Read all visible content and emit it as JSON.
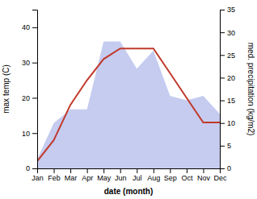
{
  "chart_data": {
    "type": "line",
    "categories": [
      "Jan",
      "Feb",
      "Mar",
      "Apr",
      "May",
      "Jun",
      "Jul",
      "Aug",
      "Sep",
      "Oct",
      "Nov",
      "Dec"
    ],
    "series": [
      {
        "type": "area",
        "axis": "y2",
        "color": "#c5ccf0",
        "values": [
          2,
          10,
          13,
          13,
          28,
          28,
          22,
          26,
          16,
          15,
          16,
          12
        ]
      },
      {
        "type": "line",
        "color": "#c0392b",
        "values": [
          2,
          8,
          18,
          25,
          31,
          34,
          34,
          34,
          27,
          20,
          13,
          13
        ]
      }
    ],
    "xlabel": "date (month)",
    "ylabel": "max temp (C)",
    "y2label": "med. precipitation (kg/m2)",
    "ylim": [
      0,
      45
    ],
    "yticks": [
      0,
      10,
      20,
      30,
      40
    ],
    "y2lim": [
      0,
      35
    ],
    "y2ticks": [
      0,
      5,
      10,
      15,
      20,
      25,
      30,
      35
    ],
    "grid": false
  }
}
